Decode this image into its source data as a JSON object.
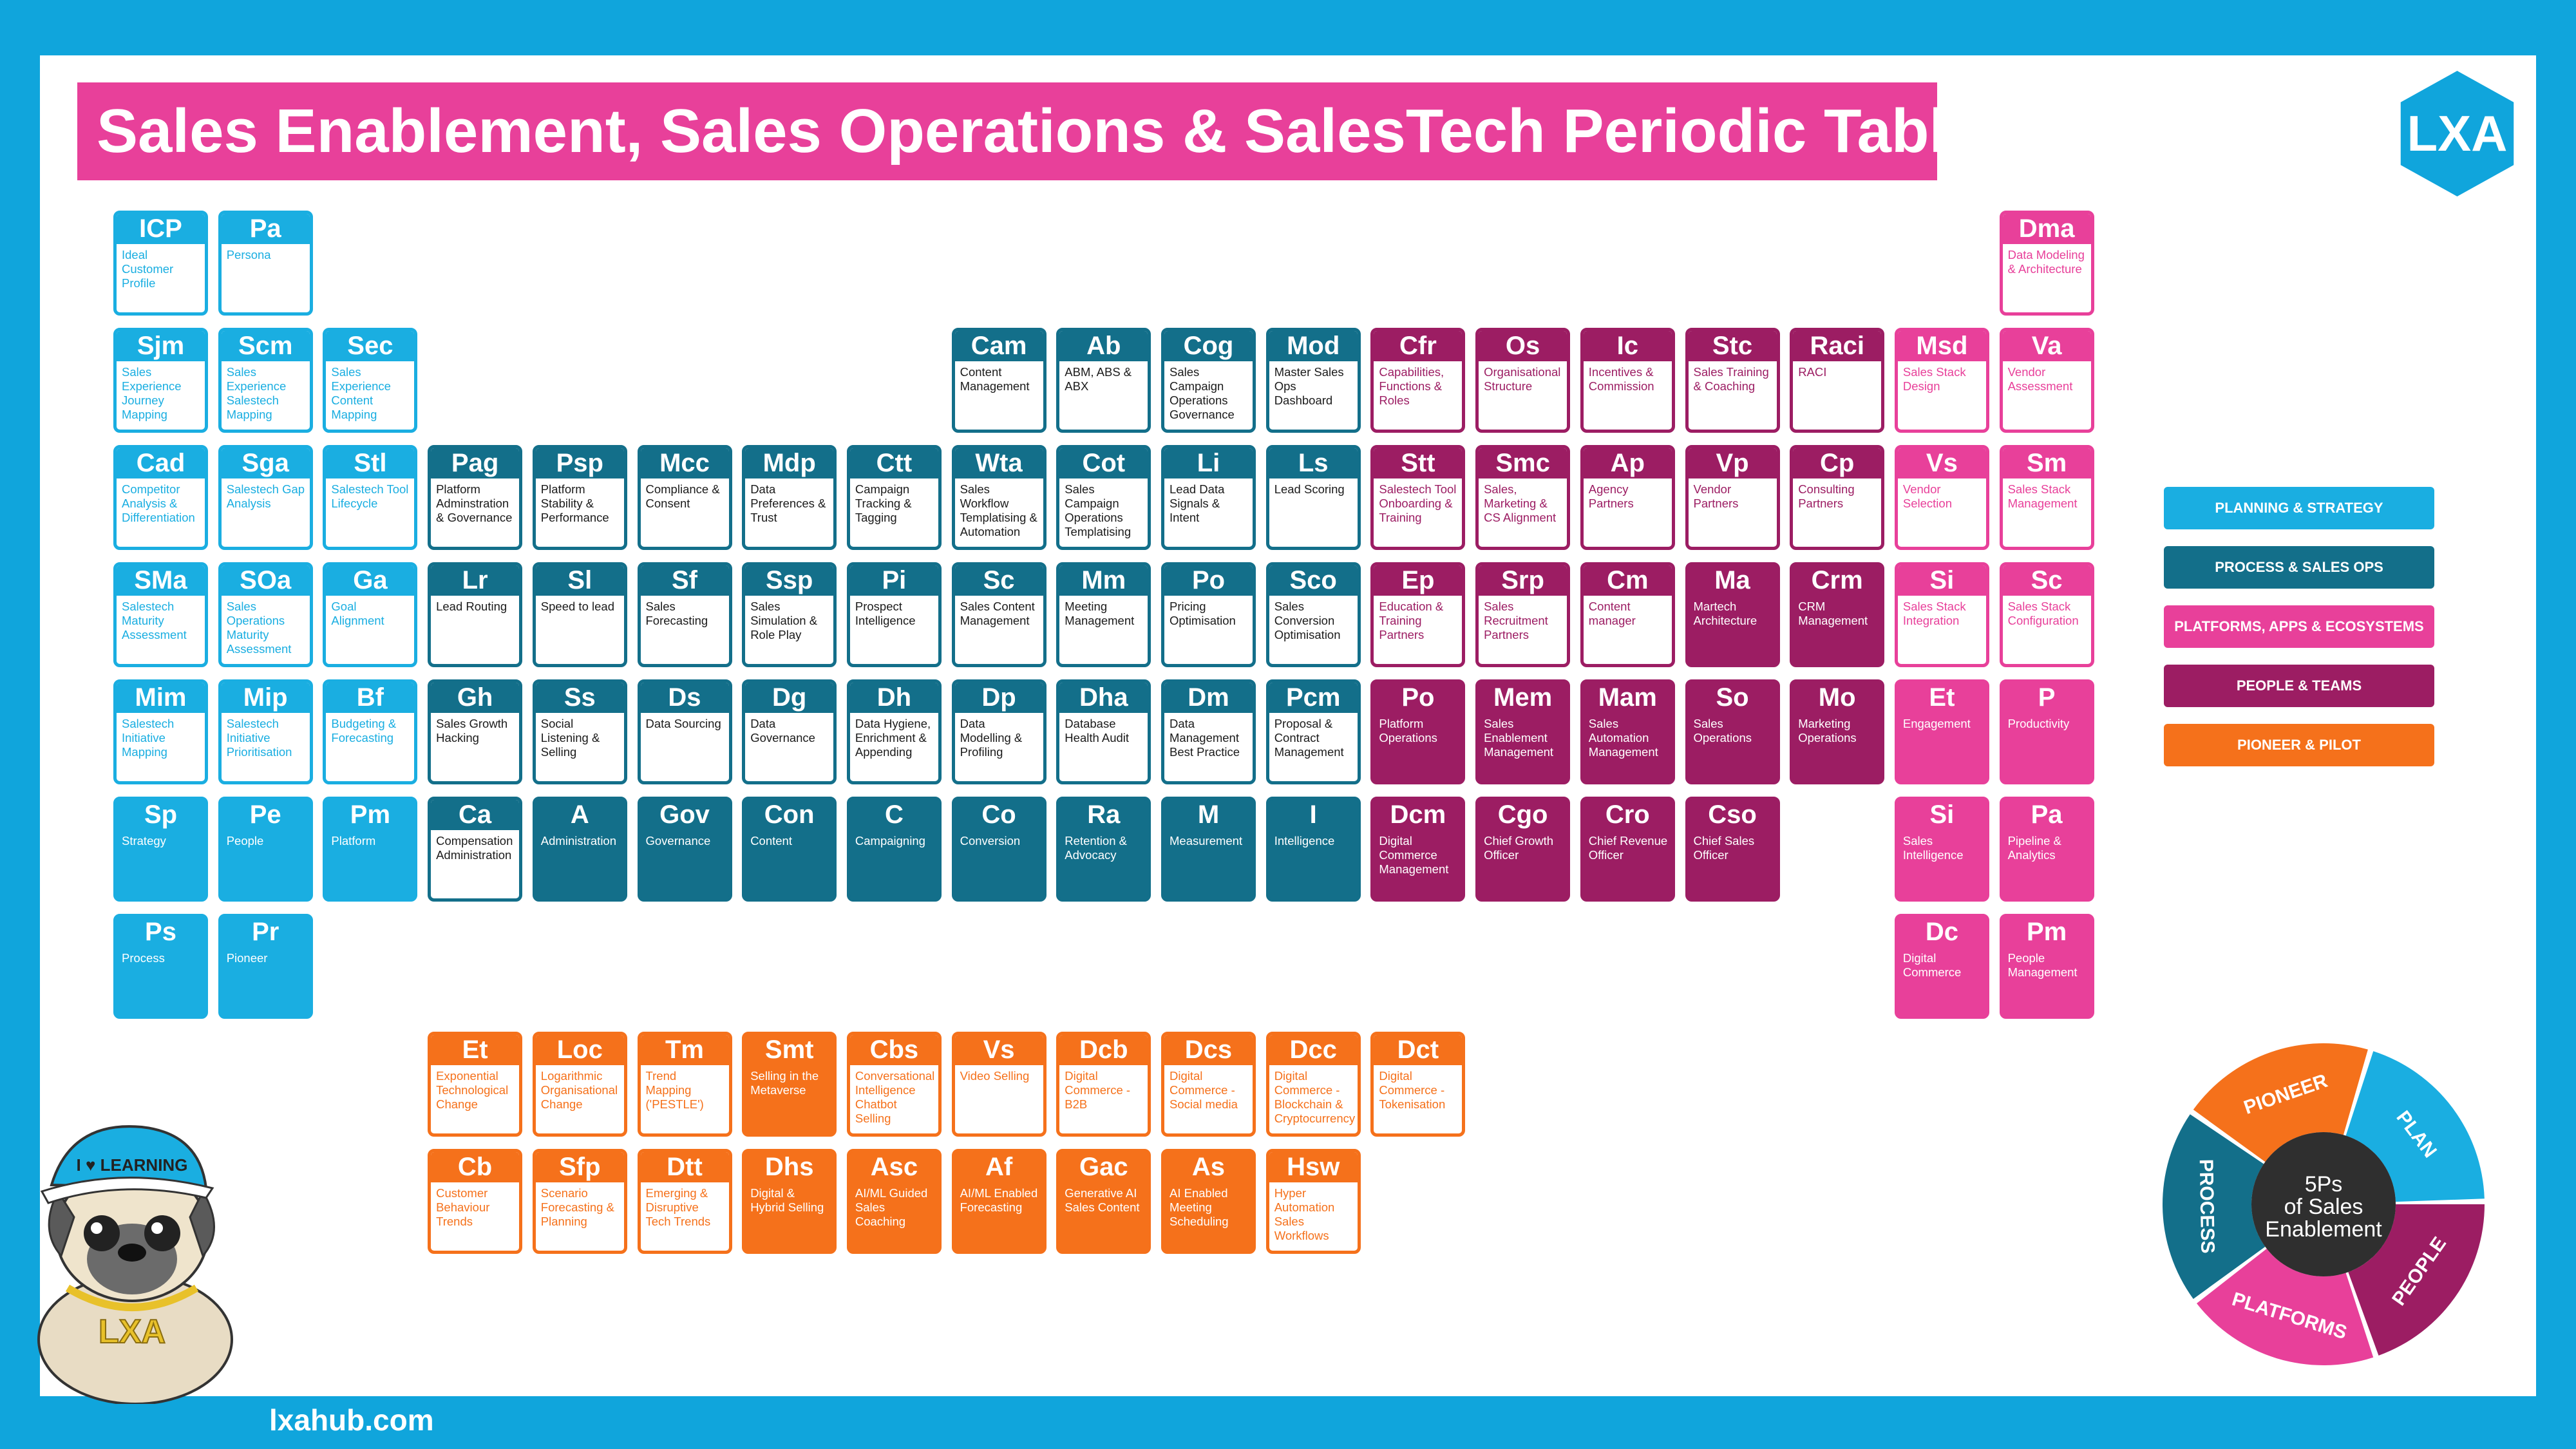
{
  "title": "Sales Enablement, Sales Operations & SalesTech Periodic Table",
  "logo": "LXA",
  "website": "lxahub.com",
  "colors": {
    "planning": "#1aaee1",
    "process": "#136f8a",
    "platforms": "#e8409a",
    "people": "#9c1d63",
    "pioneer": "#f5711b"
  },
  "legend": [
    {
      "label": "PLANNING & STRATEGY",
      "cat": "planning"
    },
    {
      "label": "PROCESS & SALES OPS",
      "cat": "process"
    },
    {
      "label": "PLATFORMS, APPS & ECOSYSTEMS",
      "cat": "platforms"
    },
    {
      "label": "PEOPLE & TEAMS",
      "cat": "people"
    },
    {
      "label": "PIONEER & PILOT",
      "cat": "pioneer"
    }
  ],
  "wheel": {
    "center": "5Ps of Sales Enablement",
    "segments": [
      "PIONEER",
      "PLAN",
      "PEOPLE",
      "PLATFORMS",
      "PROCESS"
    ]
  },
  "mascot": {
    "cap_text": "I ♥ LEARNING",
    "chain_text": "LXA"
  },
  "tiles": [
    {
      "sym": "ICP",
      "name": "Ideal Customer Profile",
      "col": 0,
      "row": 0,
      "cat": "planning",
      "solid": false
    },
    {
      "sym": "Pa",
      "name": "Persona",
      "col": 1,
      "row": 0,
      "cat": "planning",
      "solid": false
    },
    {
      "sym": "Dma",
      "name": "Data Modeling & Architecture",
      "col": 18,
      "row": 0,
      "cat": "platforms",
      "solid": false
    },
    {
      "sym": "Sjm",
      "name": "Sales Experience Journey Mapping",
      "col": 0,
      "row": 1,
      "cat": "planning",
      "solid": false
    },
    {
      "sym": "Scm",
      "name": "Sales Experience Salestech Mapping",
      "col": 1,
      "row": 1,
      "cat": "planning",
      "solid": false
    },
    {
      "sym": "Sec",
      "name": "Sales Experience Content Mapping",
      "col": 2,
      "row": 1,
      "cat": "planning",
      "solid": false
    },
    {
      "sym": "Cam",
      "name": "Content Management",
      "col": 8,
      "row": 1,
      "cat": "process",
      "solid": false
    },
    {
      "sym": "Ab",
      "name": "ABM, ABS & ABX",
      "col": 9,
      "row": 1,
      "cat": "process",
      "solid": false
    },
    {
      "sym": "Cog",
      "name": "Sales Campaign Operations Governance",
      "col": 10,
      "row": 1,
      "cat": "process",
      "solid": false
    },
    {
      "sym": "Mod",
      "name": "Master Sales Ops Dashboard",
      "col": 11,
      "row": 1,
      "cat": "process",
      "solid": false
    },
    {
      "sym": "Cfr",
      "name": "Capabilities, Functions & Roles",
      "col": 12,
      "row": 1,
      "cat": "people",
      "solid": false
    },
    {
      "sym": "Os",
      "name": "Organisational Structure",
      "col": 13,
      "row": 1,
      "cat": "people",
      "solid": false
    },
    {
      "sym": "Ic",
      "name": "Incentives & Commission",
      "col": 14,
      "row": 1,
      "cat": "people",
      "solid": false
    },
    {
      "sym": "Stc",
      "name": "Sales Training & Coaching",
      "col": 15,
      "row": 1,
      "cat": "people",
      "solid": false
    },
    {
      "sym": "Raci",
      "name": "RACI",
      "col": 16,
      "row": 1,
      "cat": "people",
      "solid": false
    },
    {
      "sym": "Msd",
      "name": "Sales Stack Design",
      "col": 17,
      "row": 1,
      "cat": "platforms",
      "solid": false
    },
    {
      "sym": "Va",
      "name": "Vendor Assessment",
      "col": 18,
      "row": 1,
      "cat": "platforms",
      "solid": false
    },
    {
      "sym": "Cad",
      "name": "Competitor Analysis & Differentiation",
      "col": 0,
      "row": 2,
      "cat": "planning",
      "solid": false
    },
    {
      "sym": "Sga",
      "name": "Salestech Gap Analysis",
      "col": 1,
      "row": 2,
      "cat": "planning",
      "solid": false
    },
    {
      "sym": "Stl",
      "name": "Salestech Tool Lifecycle",
      "col": 2,
      "row": 2,
      "cat": "planning",
      "solid": false
    },
    {
      "sym": "Pag",
      "name": "Platform Adminstration & Governance",
      "col": 3,
      "row": 2,
      "cat": "process",
      "solid": false
    },
    {
      "sym": "Psp",
      "name": "Platform Stability & Performance",
      "col": 4,
      "row": 2,
      "cat": "process",
      "solid": false
    },
    {
      "sym": "Mcc",
      "name": "Compliance & Consent",
      "col": 5,
      "row": 2,
      "cat": "process",
      "solid": false
    },
    {
      "sym": "Mdp",
      "name": "Data Preferences & Trust",
      "col": 6,
      "row": 2,
      "cat": "process",
      "solid": false
    },
    {
      "sym": "Ctt",
      "name": "Campaign Tracking & Tagging",
      "col": 7,
      "row": 2,
      "cat": "process",
      "solid": false
    },
    {
      "sym": "Wta",
      "name": "Sales Workflow Templatising & Automation",
      "col": 8,
      "row": 2,
      "cat": "process",
      "solid": false
    },
    {
      "sym": "Cot",
      "name": "Sales Campaign Operations Templatising",
      "col": 9,
      "row": 2,
      "cat": "process",
      "solid": false
    },
    {
      "sym": "Li",
      "name": "Lead Data Signals & Intent",
      "col": 10,
      "row": 2,
      "cat": "process",
      "solid": false
    },
    {
      "sym": "Ls",
      "name": "Lead Scoring",
      "col": 11,
      "row": 2,
      "cat": "process",
      "solid": false
    },
    {
      "sym": "Stt",
      "name": "Salestech Tool Onboarding & Training",
      "col": 12,
      "row": 2,
      "cat": "people",
      "solid": false
    },
    {
      "sym": "Smc",
      "name": "Sales, Marketing & CS Alignment",
      "col": 13,
      "row": 2,
      "cat": "people",
      "solid": false
    },
    {
      "sym": "Ap",
      "name": "Agency Partners",
      "col": 14,
      "row": 2,
      "cat": "people",
      "solid": false
    },
    {
      "sym": "Vp",
      "name": "Vendor Partners",
      "col": 15,
      "row": 2,
      "cat": "people",
      "solid": false
    },
    {
      "sym": "Cp",
      "name": "Consulting Partners",
      "col": 16,
      "row": 2,
      "cat": "people",
      "solid": false
    },
    {
      "sym": "Vs",
      "name": "Vendor Selection",
      "col": 17,
      "row": 2,
      "cat": "platforms",
      "solid": false
    },
    {
      "sym": "Sm",
      "name": "Sales Stack Management",
      "col": 18,
      "row": 2,
      "cat": "platforms",
      "solid": false
    },
    {
      "sym": "SMa",
      "name": "Salestech Maturity Assessment",
      "col": 0,
      "row": 3,
      "cat": "planning",
      "solid": false
    },
    {
      "sym": "SOa",
      "name": "Sales Operations Maturity Assessment",
      "col": 1,
      "row": 3,
      "cat": "planning",
      "solid": false
    },
    {
      "sym": "Ga",
      "name": "Goal Alignment",
      "col": 2,
      "row": 3,
      "cat": "planning",
      "solid": false
    },
    {
      "sym": "Lr",
      "name": "Lead Routing",
      "col": 3,
      "row": 3,
      "cat": "process",
      "solid": false
    },
    {
      "sym": "Sl",
      "name": "Speed to lead",
      "col": 4,
      "row": 3,
      "cat": "process",
      "solid": false
    },
    {
      "sym": "Sf",
      "name": "Sales Forecasting",
      "col": 5,
      "row": 3,
      "cat": "process",
      "solid": false
    },
    {
      "sym": "Ssp",
      "name": "Sales Simulation & Role Play",
      "col": 6,
      "row": 3,
      "cat": "process",
      "solid": false
    },
    {
      "sym": "Pi",
      "name": "Prospect Intelligence",
      "col": 7,
      "row": 3,
      "cat": "process",
      "solid": false
    },
    {
      "sym": "Sc",
      "name": "Sales Content Management",
      "col": 8,
      "row": 3,
      "cat": "process",
      "solid": false
    },
    {
      "sym": "Mm",
      "name": "Meeting Management",
      "col": 9,
      "row": 3,
      "cat": "process",
      "solid": false
    },
    {
      "sym": "Po",
      "name": "Pricing Optimisation",
      "col": 10,
      "row": 3,
      "cat": "process",
      "solid": false
    },
    {
      "sym": "Sco",
      "name": "Sales Conversion Optimisation",
      "col": 11,
      "row": 3,
      "cat": "process",
      "solid": false
    },
    {
      "sym": "Ep",
      "name": "Education & Training Partners",
      "col": 12,
      "row": 3,
      "cat": "people",
      "solid": false
    },
    {
      "sym": "Srp",
      "name": "Sales Recruitment Partners",
      "col": 13,
      "row": 3,
      "cat": "people",
      "solid": false
    },
    {
      "sym": "Cm",
      "name": "Content manager",
      "col": 14,
      "row": 3,
      "cat": "people",
      "solid": false
    },
    {
      "sym": "Ma",
      "name": "Martech Architecture",
      "col": 15,
      "row": 3,
      "cat": "people",
      "solid": true
    },
    {
      "sym": "Crm",
      "name": "CRM Management",
      "col": 16,
      "row": 3,
      "cat": "people",
      "solid": true
    },
    {
      "sym": "Si",
      "name": "Sales Stack Integration",
      "col": 17,
      "row": 3,
      "cat": "platforms",
      "solid": false
    },
    {
      "sym": "Sc",
      "name": "Sales Stack Configuration",
      "col": 18,
      "row": 3,
      "cat": "platforms",
      "solid": false
    },
    {
      "sym": "Mim",
      "name": "Salestech Initiative Mapping",
      "col": 0,
      "row": 4,
      "cat": "planning",
      "solid": false
    },
    {
      "sym": "Mip",
      "name": "Salestech Initiative Prioritisation",
      "col": 1,
      "row": 4,
      "cat": "planning",
      "solid": false
    },
    {
      "sym": "Bf",
      "name": "Budgeting & Forecasting",
      "col": 2,
      "row": 4,
      "cat": "planning",
      "solid": false
    },
    {
      "sym": "Gh",
      "name": "Sales Growth Hacking",
      "col": 3,
      "row": 4,
      "cat": "process",
      "solid": false
    },
    {
      "sym": "Ss",
      "name": "Social Listening & Selling",
      "col": 4,
      "row": 4,
      "cat": "process",
      "solid": false
    },
    {
      "sym": "Ds",
      "name": "Data Sourcing",
      "col": 5,
      "row": 4,
      "cat": "process",
      "solid": false
    },
    {
      "sym": "Dg",
      "name": "Data Governance",
      "col": 6,
      "row": 4,
      "cat": "process",
      "solid": false
    },
    {
      "sym": "Dh",
      "name": "Data Hygiene, Enrichment & Appending",
      "col": 7,
      "row": 4,
      "cat": "process",
      "solid": false
    },
    {
      "sym": "Dp",
      "name": "Data Modelling & Profiling",
      "col": 8,
      "row": 4,
      "cat": "process",
      "solid": false
    },
    {
      "sym": "Dha",
      "name": "Database Health Audit",
      "col": 9,
      "row": 4,
      "cat": "process",
      "solid": false
    },
    {
      "sym": "Dm",
      "name": "Data Management Best Practice",
      "col": 10,
      "row": 4,
      "cat": "process",
      "solid": false
    },
    {
      "sym": "Pcm",
      "name": "Proposal & Contract Management",
      "col": 11,
      "row": 4,
      "cat": "process",
      "solid": false
    },
    {
      "sym": "Po",
      "name": "Platform Operations",
      "col": 12,
      "row": 4,
      "cat": "people",
      "solid": true
    },
    {
      "sym": "Mem",
      "name": "Sales Enablement Management",
      "col": 13,
      "row": 4,
      "cat": "people",
      "solid": true
    },
    {
      "sym": "Mam",
      "name": "Sales Automation Management",
      "col": 14,
      "row": 4,
      "cat": "people",
      "solid": true
    },
    {
      "sym": "So",
      "name": "Sales Operations",
      "col": 15,
      "row": 4,
      "cat": "people",
      "solid": true
    },
    {
      "sym": "Mo",
      "name": "Marketing Operations",
      "col": 16,
      "row": 4,
      "cat": "people",
      "solid": true
    },
    {
      "sym": "Et",
      "name": "Engagement",
      "col": 17,
      "row": 4,
      "cat": "platforms",
      "solid": true
    },
    {
      "sym": "P",
      "name": "Productivity",
      "col": 18,
      "row": 4,
      "cat": "platforms",
      "solid": true
    },
    {
      "sym": "Sp",
      "name": "Strategy",
      "col": 0,
      "row": 5,
      "cat": "planning",
      "solid": true
    },
    {
      "sym": "Pe",
      "name": "People",
      "col": 1,
      "row": 5,
      "cat": "planning",
      "solid": true
    },
    {
      "sym": "Pm",
      "name": "Platform",
      "col": 2,
      "row": 5,
      "cat": "planning",
      "solid": true
    },
    {
      "sym": "Ca",
      "name": "Compensation Administration",
      "col": 3,
      "row": 5,
      "cat": "process",
      "solid": false
    },
    {
      "sym": "A",
      "name": "Administration",
      "col": 4,
      "row": 5,
      "cat": "process",
      "solid": true
    },
    {
      "sym": "Gov",
      "name": "Governance",
      "col": 5,
      "row": 5,
      "cat": "process",
      "solid": true
    },
    {
      "sym": "Con",
      "name": "Content",
      "col": 6,
      "row": 5,
      "cat": "process",
      "solid": true
    },
    {
      "sym": "C",
      "name": "Campaigning",
      "col": 7,
      "row": 5,
      "cat": "process",
      "solid": true
    },
    {
      "sym": "Co",
      "name": "Conversion",
      "col": 8,
      "row": 5,
      "cat": "process",
      "solid": true
    },
    {
      "sym": "Ra",
      "name": "Retention & Advocacy",
      "col": 9,
      "row": 5,
      "cat": "process",
      "solid": true
    },
    {
      "sym": "M",
      "name": "Measurement",
      "col": 10,
      "row": 5,
      "cat": "process",
      "solid": true
    },
    {
      "sym": "I",
      "name": "Intelligence",
      "col": 11,
      "row": 5,
      "cat": "process",
      "solid": true
    },
    {
      "sym": "Dcm",
      "name": "Digital Commerce Management",
      "col": 12,
      "row": 5,
      "cat": "people",
      "solid": true
    },
    {
      "sym": "Cgo",
      "name": "Chief Growth Officer",
      "col": 13,
      "row": 5,
      "cat": "people",
      "solid": true
    },
    {
      "sym": "Cro",
      "name": "Chief Revenue Officer",
      "col": 14,
      "row": 5,
      "cat": "people",
      "solid": true
    },
    {
      "sym": "Cso",
      "name": "Chief Sales Officer",
      "col": 15,
      "row": 5,
      "cat": "people",
      "solid": true
    },
    {
      "sym": "Si",
      "name": "Sales Intelligence",
      "col": 17,
      "row": 5,
      "cat": "platforms",
      "solid": true
    },
    {
      "sym": "Pa",
      "name": "Pipeline & Analytics",
      "col": 18,
      "row": 5,
      "cat": "platforms",
      "solid": true
    },
    {
      "sym": "Ps",
      "name": "Process",
      "col": 0,
      "row": 6,
      "cat": "planning",
      "solid": true
    },
    {
      "sym": "Pr",
      "name": "Pioneer",
      "col": 1,
      "row": 6,
      "cat": "planning",
      "solid": true
    },
    {
      "sym": "Dc",
      "name": "Digital Commerce",
      "col": 17,
      "row": 6,
      "cat": "platforms",
      "solid": true
    },
    {
      "sym": "Pm",
      "name": "People Management",
      "col": 18,
      "row": 6,
      "cat": "platforms",
      "solid": true
    },
    {
      "sym": "Et",
      "name": "Exponential Technological Change",
      "col": 3,
      "row": 7,
      "cat": "pioneer",
      "solid": false
    },
    {
      "sym": "Loc",
      "name": "Logarithmic Organisational Change",
      "col": 4,
      "row": 7,
      "cat": "pioneer",
      "solid": false
    },
    {
      "sym": "Tm",
      "name": "Trend Mapping ('PESTLE')",
      "col": 5,
      "row": 7,
      "cat": "pioneer",
      "solid": false
    },
    {
      "sym": "Smt",
      "name": "Selling in the Metaverse",
      "col": 6,
      "row": 7,
      "cat": "pioneer",
      "solid": true
    },
    {
      "sym": "Cbs",
      "name": "Conversational Intelligence Chatbot Selling",
      "col": 7,
      "row": 7,
      "cat": "pioneer",
      "solid": false
    },
    {
      "sym": "Vs",
      "name": "Video Selling",
      "col": 8,
      "row": 7,
      "cat": "pioneer",
      "solid": false
    },
    {
      "sym": "Dcb",
      "name": "Digital Commerce - B2B",
      "col": 9,
      "row": 7,
      "cat": "pioneer",
      "solid": false
    },
    {
      "sym": "Dcs",
      "name": "Digital Commerce - Social media",
      "col": 10,
      "row": 7,
      "cat": "pioneer",
      "solid": false
    },
    {
      "sym": "Dcc",
      "name": "Digital Commerce - Blockchain & Cryptocurrency",
      "col": 11,
      "row": 7,
      "cat": "pioneer",
      "solid": false
    },
    {
      "sym": "Dct",
      "name": "Digital Commerce - Tokenisation",
      "col": 12,
      "row": 7,
      "cat": "pioneer",
      "solid": false
    },
    {
      "sym": "Cb",
      "name": "Customer Behaviour Trends",
      "col": 3,
      "row": 8,
      "cat": "pioneer",
      "solid": false
    },
    {
      "sym": "Sfp",
      "name": "Scenario Forecasting & Planning",
      "col": 4,
      "row": 8,
      "cat": "pioneer",
      "solid": false
    },
    {
      "sym": "Dtt",
      "name": "Emerging & Disruptive Tech Trends",
      "col": 5,
      "row": 8,
      "cat": "pioneer",
      "solid": false
    },
    {
      "sym": "Dhs",
      "name": "Digital & Hybrid Selling",
      "col": 6,
      "row": 8,
      "cat": "pioneer",
      "solid": true
    },
    {
      "sym": "Asc",
      "name": "AI/ML Guided Sales Coaching",
      "col": 7,
      "row": 8,
      "cat": "pioneer",
      "solid": true
    },
    {
      "sym": "Af",
      "name": "AI/ML Enabled Forecasting",
      "col": 8,
      "row": 8,
      "cat": "pioneer",
      "solid": true
    },
    {
      "sym": "Gac",
      "name": "Generative AI Sales Content",
      "col": 9,
      "row": 8,
      "cat": "pioneer",
      "solid": true
    },
    {
      "sym": "As",
      "name": "AI Enabled Meeting Scheduling",
      "col": 10,
      "row": 8,
      "cat": "pioneer",
      "solid": true
    },
    {
      "sym": "Hsw",
      "name": "Hyper Automation Sales Workflows",
      "col": 11,
      "row": 8,
      "cat": "pioneer",
      "solid": false
    }
  ]
}
